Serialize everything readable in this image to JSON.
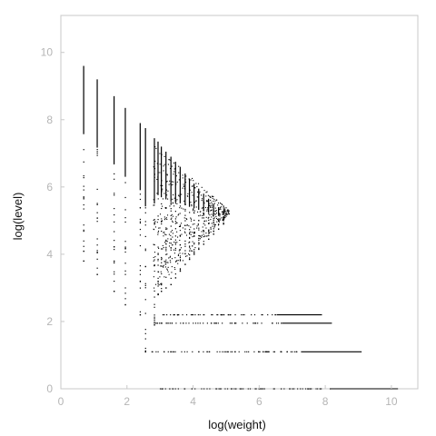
{
  "chart_data": {
    "type": "scatter",
    "xlabel": "log(weight)",
    "ylabel": "log(level)",
    "xlim": [
      0,
      10.8
    ],
    "ylim": [
      0,
      11.1
    ],
    "xticks": [
      "0",
      "2",
      "4",
      "6",
      "8",
      "10"
    ],
    "yticks": [
      "0",
      "2",
      "4",
      "6",
      "8",
      "10"
    ],
    "grid": false,
    "colors": {
      "points": "#000000",
      "axes": "#c8c8c8",
      "ticks": "#b5b5b5"
    },
    "series": [
      {
        "vertical_columns": [
          {
            "x": 0.69,
            "y_range": [
              3.8,
              9.6
            ]
          },
          {
            "x": 1.1,
            "y_range": [
              3.4,
              9.2
            ]
          },
          {
            "x": 1.61,
            "y_range": [
              2.9,
              8.7
            ]
          },
          {
            "x": 1.95,
            "y_range": [
              2.5,
              8.35
            ]
          },
          {
            "x": 2.4,
            "y_range": [
              2.2,
              7.9
            ]
          },
          {
            "x": 2.56,
            "y_range": [
              1.1,
              7.75
            ]
          },
          {
            "x": 2.83,
            "y_range": [
              1.9,
              7.45
            ]
          },
          {
            "x": 2.94,
            "y_range": [
              2.8,
              7.35
            ]
          },
          {
            "x": 3.04,
            "y_range": [
              2.9,
              7.2
            ]
          },
          {
            "x": 3.18,
            "y_range": [
              3.0,
              7.05
            ]
          },
          {
            "x": 3.33,
            "y_range": [
              3.1,
              6.9
            ]
          },
          {
            "x": 3.47,
            "y_range": [
              3.3,
              6.75
            ]
          },
          {
            "x": 3.61,
            "y_range": [
              3.5,
              6.6
            ]
          },
          {
            "x": 3.76,
            "y_range": [
              3.7,
              6.4
            ]
          },
          {
            "x": 3.89,
            "y_range": [
              3.85,
              6.25
            ]
          },
          {
            "x": 4.03,
            "y_range": [
              4.0,
              6.1
            ]
          },
          {
            "x": 4.17,
            "y_range": [
              4.15,
              5.95
            ]
          },
          {
            "x": 4.32,
            "y_range": [
              4.3,
              5.8
            ]
          },
          {
            "x": 4.47,
            "y_range": [
              4.45,
              5.65
            ]
          },
          {
            "x": 4.62,
            "y_range": [
              4.6,
              5.5
            ]
          },
          {
            "x": 4.77,
            "y_range": [
              4.75,
              5.4
            ]
          },
          {
            "x": 4.92,
            "y_range": [
              4.9,
              5.3
            ]
          }
        ],
        "horizontal_bands": [
          {
            "y": 2.2,
            "x_range": [
              3.0,
              7.9
            ]
          },
          {
            "y": 1.95,
            "x_range": [
              2.8,
              8.2
            ]
          },
          {
            "y": 1.1,
            "x_range": [
              2.55,
              9.1
            ]
          },
          {
            "y": 0.0,
            "x_range": [
              2.9,
              10.2
            ]
          }
        ]
      }
    ]
  }
}
